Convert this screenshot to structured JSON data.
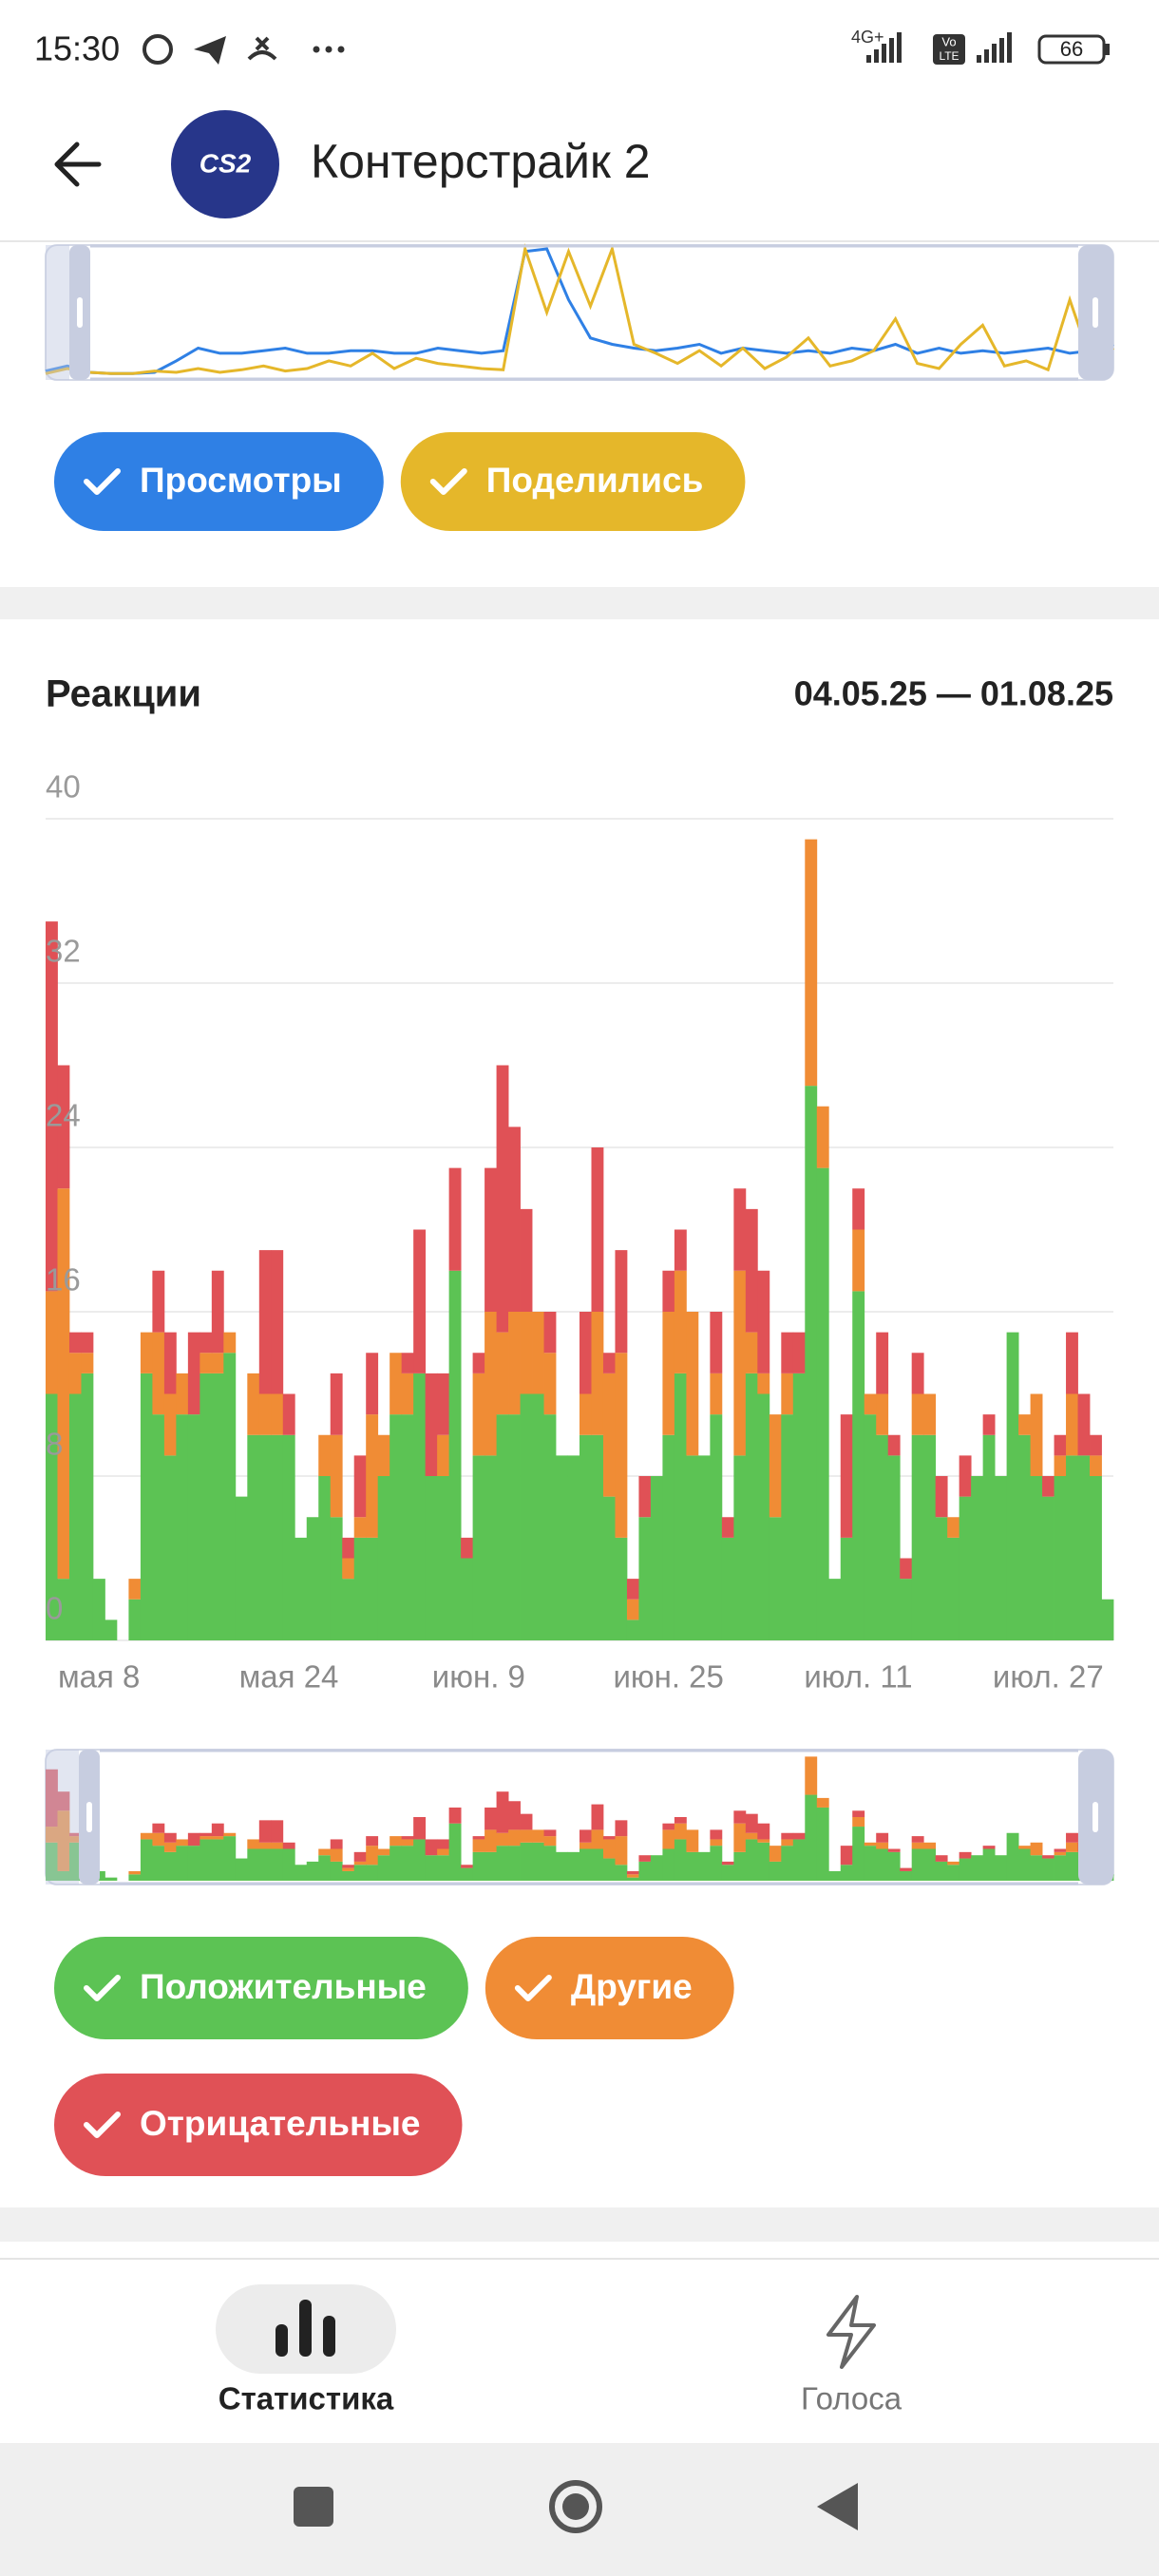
{
  "status_bar": {
    "time": "15:30",
    "network": "4G+",
    "volte": [
      "Vo",
      "LTE"
    ],
    "battery": "66"
  },
  "header": {
    "logo": "CS2",
    "title": "Контерстрайк 2"
  },
  "chart_data": [
    {
      "type": "line",
      "series": [
        {
          "name": "Просмотры",
          "color": "#2f80e5",
          "values": [
            4,
            8,
            3,
            2,
            2,
            3,
            12,
            22,
            18,
            18,
            20,
            22,
            18,
            18,
            20,
            20,
            18,
            18,
            22,
            20,
            18,
            20,
            98,
            100,
            60,
            30,
            25,
            22,
            20,
            22,
            25,
            18,
            22,
            20,
            18,
            20,
            18,
            22,
            20,
            25,
            18,
            22,
            18,
            20,
            18,
            20,
            22,
            18,
            20,
            25
          ]
        },
        {
          "name": "Поделились",
          "color": "#e5b72a",
          "values": [
            2,
            6,
            3,
            2,
            2,
            4,
            3,
            6,
            3,
            5,
            8,
            4,
            6,
            12,
            8,
            18,
            6,
            14,
            10,
            8,
            6,
            5,
            100,
            50,
            98,
            55,
            100,
            25,
            18,
            10,
            20,
            8,
            22,
            6,
            15,
            30,
            8,
            12,
            20,
            45,
            10,
            6,
            25,
            40,
            8,
            12,
            5,
            60,
            10,
            22
          ]
        }
      ],
      "ylim": [
        0,
        100
      ]
    },
    {
      "type": "stacked_bar",
      "title": "Реакции",
      "subtitle": "04.05.25 — 01.08.25",
      "categories": [
        null,
        null,
        null,
        null,
        "мая 8",
        null,
        null,
        null,
        null,
        null,
        null,
        null,
        null,
        null,
        null,
        null,
        null,
        null,
        null,
        null,
        "мая 24",
        null,
        null,
        null,
        null,
        null,
        null,
        null,
        null,
        null,
        null,
        null,
        null,
        null,
        null,
        null,
        "июн. 9",
        null,
        null,
        null,
        null,
        null,
        null,
        null,
        null,
        null,
        null,
        null,
        null,
        null,
        null,
        null,
        "июн. 25",
        null,
        null,
        null,
        null,
        null,
        null,
        null,
        null,
        null,
        null,
        null,
        null,
        null,
        null,
        null,
        "июл. 11",
        null,
        null,
        null,
        null,
        null,
        null,
        null,
        null,
        null,
        null,
        null,
        null,
        null,
        null,
        null,
        "июл. 27",
        null,
        null,
        null,
        null,
        null
      ],
      "series": [
        {
          "name": "Положительные",
          "color": "#5cc354",
          "values": [
            12,
            3,
            12,
            13,
            3,
            1,
            0,
            2,
            13,
            11,
            9,
            11,
            11,
            13,
            13,
            14,
            7,
            10,
            10,
            10,
            10,
            5,
            6,
            8,
            6,
            3,
            5,
            5,
            8,
            11,
            11,
            13,
            8,
            8,
            18,
            4,
            9,
            9,
            11,
            11,
            12,
            12,
            11,
            9,
            9,
            10,
            10,
            7,
            5,
            1,
            6,
            8,
            10,
            13,
            9,
            9,
            11,
            5,
            9,
            13,
            12,
            6,
            11,
            13,
            27,
            23,
            3,
            5,
            17,
            11,
            10,
            9,
            3,
            10,
            10,
            6,
            5,
            7,
            8,
            10,
            8,
            15,
            10,
            8,
            7,
            8,
            9,
            9,
            8,
            2
          ]
        },
        {
          "name": "Другие",
          "color": "#f08c35",
          "values": [
            5,
            19,
            2,
            1,
            0,
            0,
            0,
            1,
            2,
            4,
            3,
            2,
            0,
            1,
            1,
            1,
            0,
            3,
            2,
            2,
            0,
            0,
            0,
            2,
            4,
            1,
            1,
            6,
            2,
            3,
            2,
            0,
            0,
            2,
            0,
            0,
            4,
            7,
            4,
            5,
            4,
            4,
            3,
            0,
            0,
            2,
            6,
            6,
            9,
            1,
            0,
            0,
            6,
            5,
            7,
            0,
            2,
            0,
            9,
            2,
            1,
            5,
            2,
            0,
            12,
            3,
            0,
            0,
            3,
            1,
            2,
            0,
            0,
            2,
            2,
            0,
            1,
            0,
            0,
            0,
            0,
            0,
            1,
            4,
            0,
            1,
            3,
            0,
            1,
            0
          ]
        },
        {
          "name": "Отрицательные",
          "color": "#e05156",
          "values": [
            18,
            6,
            1,
            1,
            0,
            0,
            0,
            0,
            0,
            3,
            3,
            0,
            4,
            1,
            4,
            0,
            0,
            0,
            7,
            7,
            2,
            0,
            0,
            0,
            3,
            1,
            3,
            3,
            0,
            0,
            1,
            7,
            5,
            3,
            5,
            1,
            1,
            7,
            13,
            9,
            5,
            0,
            2,
            0,
            0,
            4,
            8,
            1,
            5,
            1,
            2,
            0,
            2,
            2,
            0,
            0,
            3,
            1,
            4,
            6,
            5,
            0,
            2,
            2,
            0,
            0,
            0,
            6,
            2,
            0,
            3,
            1,
            1,
            2,
            0,
            2,
            0,
            2,
            0,
            1,
            0,
            0,
            0,
            0,
            1,
            1,
            3,
            3,
            1,
            0
          ]
        }
      ],
      "ylim": [
        0,
        40
      ],
      "yticks": [
        0,
        8,
        16,
        24,
        32,
        40
      ],
      "grid": true
    }
  ],
  "bottom_nav": {
    "items": [
      "Статистика",
      "Голоса"
    ]
  }
}
